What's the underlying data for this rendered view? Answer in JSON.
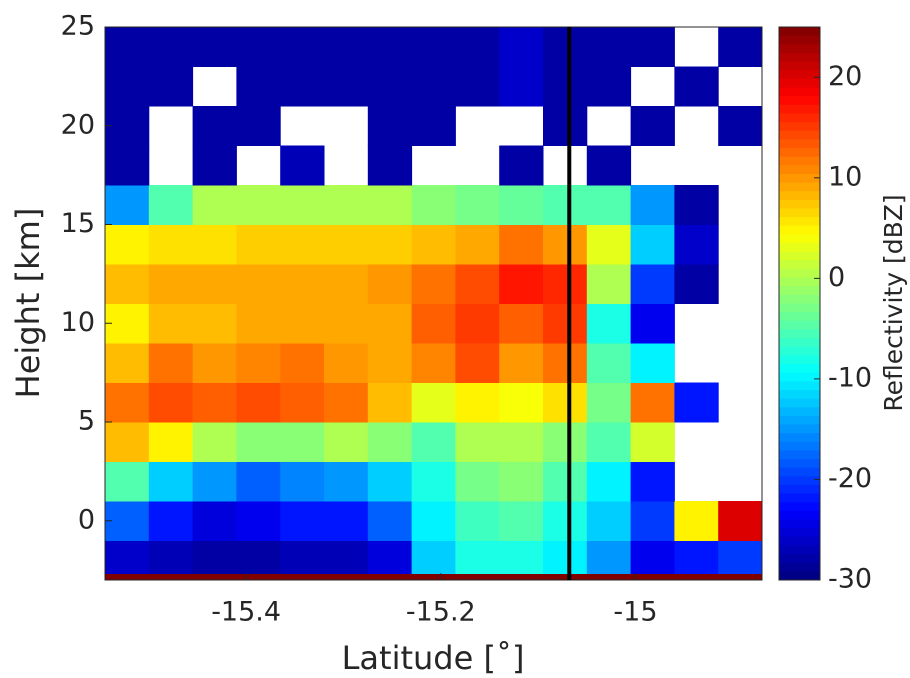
{
  "chart_data": {
    "type": "heatmap",
    "colormap": "jet",
    "xlabel": "Latitude [˚]",
    "ylabel": "Height [km]",
    "colorbar_label": "Reflectivity [dBZ]",
    "xlim": [
      -15.545,
      -14.87
    ],
    "ylim": [
      -3,
      25
    ],
    "xticks": [
      -15.4,
      -15.2,
      -15
    ],
    "yticks": [
      0,
      5,
      10,
      15,
      20,
      25
    ],
    "clim": [
      -30,
      25
    ],
    "cticks": [
      -30,
      -20,
      -10,
      0,
      10,
      20
    ],
    "vline_x": -15.068,
    "vline_color": "#000000",
    "x_bins": [
      -15.545,
      -15.5,
      -15.455,
      -15.41,
      -15.365,
      -15.32,
      -15.275,
      -15.23,
      -15.185,
      -15.14,
      -15.095,
      -15.05,
      -15.005,
      -14.96,
      -14.915,
      -14.87
    ],
    "y_bins": [
      -3,
      -1,
      1,
      3,
      5,
      7,
      9,
      11,
      13,
      15,
      17,
      19,
      21,
      23,
      25
    ],
    "values": [
      [
        -26,
        -27,
        -28,
        -28,
        -27,
        -27,
        -25,
        -12,
        -8,
        -8,
        -10,
        -15,
        -24,
        -22,
        -20
      ],
      [
        -18,
        -22,
        -25,
        -24,
        -22,
        -22,
        -18,
        -10,
        -6,
        -5,
        -8,
        -12,
        -20,
        5,
        20
      ],
      [
        -5,
        -12,
        -15,
        -18,
        -16,
        -15,
        -12,
        -8,
        -3,
        -2,
        -5,
        -10,
        -22,
        null,
        null
      ],
      [
        8,
        5,
        0,
        -2,
        -2,
        0,
        -2,
        -5,
        0,
        0,
        -2,
        -5,
        2,
        null,
        null
      ],
      [
        12,
        14,
        13,
        14,
        13,
        12,
        8,
        3,
        5,
        4,
        6,
        -3,
        12,
        -22,
        null
      ],
      [
        8,
        12,
        10,
        11,
        12,
        10,
        9,
        11,
        14,
        10,
        12,
        -5,
        -10,
        null,
        null
      ],
      [
        5,
        8,
        8,
        9,
        9,
        9,
        9,
        13,
        15,
        13,
        15,
        -8,
        -24,
        null,
        null
      ],
      [
        8,
        9,
        9,
        9,
        9,
        9,
        10,
        12,
        14,
        17,
        16,
        0,
        -20,
        -28,
        null
      ],
      [
        5,
        6,
        6,
        7,
        7,
        7,
        7,
        8,
        9,
        12,
        10,
        3,
        -12,
        -26,
        null
      ],
      [
        -15,
        -5,
        0,
        0,
        0,
        0,
        0,
        -2,
        -3,
        -4,
        -5,
        -5,
        -15,
        -28,
        null
      ],
      [
        -28,
        null,
        -28,
        null,
        -27,
        null,
        -28,
        null,
        null,
        -28,
        null,
        -28,
        null,
        null,
        null
      ],
      [
        -28,
        null,
        -28,
        -28,
        null,
        null,
        -28,
        -28,
        null,
        null,
        -28,
        null,
        -28,
        null,
        -28
      ],
      [
        -28,
        -28,
        null,
        -28,
        -28,
        -28,
        -28,
        -28,
        -28,
        -26,
        -28,
        -28,
        null,
        -28,
        null
      ],
      [
        -28,
        -28,
        -28,
        -28,
        -28,
        -28,
        -28,
        -28,
        -28,
        -26,
        -28,
        -28,
        -28,
        null,
        -28
      ]
    ]
  }
}
